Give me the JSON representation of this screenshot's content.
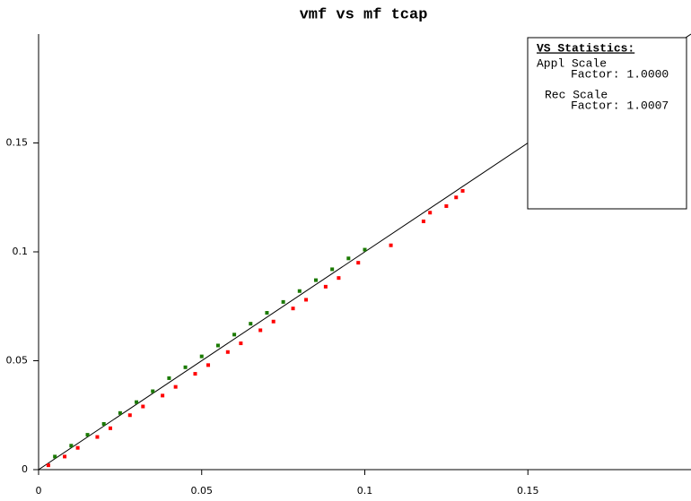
{
  "chart_data": {
    "type": "scatter",
    "title": "vmf vs mf tcap",
    "xlim": [
      0,
      0.2
    ],
    "ylim": [
      0,
      0.2
    ],
    "xticks": [
      0,
      0.05,
      0.1,
      0.15
    ],
    "yticks": [
      0,
      0.05,
      0.1,
      0.15
    ],
    "identity_line": true,
    "series": [
      {
        "color": "#1a7a00",
        "x": [
          0.005,
          0.01,
          0.015,
          0.02,
          0.025,
          0.03,
          0.035,
          0.04,
          0.045,
          0.05,
          0.055,
          0.06,
          0.065,
          0.07,
          0.075,
          0.08,
          0.085,
          0.09,
          0.095,
          0.1
        ],
        "y": [
          0.006,
          0.011,
          0.016,
          0.021,
          0.026,
          0.031,
          0.036,
          0.042,
          0.047,
          0.052,
          0.057,
          0.062,
          0.067,
          0.072,
          0.077,
          0.082,
          0.087,
          0.092,
          0.097,
          0.101
        ]
      },
      {
        "color": "#ff0000",
        "x": [
          0.003,
          0.008,
          0.012,
          0.018,
          0.022,
          0.028,
          0.032,
          0.038,
          0.042,
          0.048,
          0.052,
          0.058,
          0.062,
          0.068,
          0.072,
          0.078,
          0.082,
          0.088,
          0.092,
          0.098,
          0.108,
          0.118,
          0.12,
          0.125,
          0.128,
          0.13
        ],
        "y": [
          0.002,
          0.006,
          0.01,
          0.015,
          0.019,
          0.025,
          0.029,
          0.034,
          0.038,
          0.044,
          0.048,
          0.054,
          0.058,
          0.064,
          0.068,
          0.074,
          0.078,
          0.084,
          0.088,
          0.095,
          0.103,
          0.114,
          0.118,
          0.121,
          0.125,
          0.128
        ]
      }
    ],
    "stats_box": {
      "title": "VS Statistics:",
      "appl_label": "Appl Scale",
      "appl_factor": "Factor: 1.0000",
      "rec_label": "Rec Scale",
      "rec_factor": "Factor: 1.0007"
    }
  }
}
